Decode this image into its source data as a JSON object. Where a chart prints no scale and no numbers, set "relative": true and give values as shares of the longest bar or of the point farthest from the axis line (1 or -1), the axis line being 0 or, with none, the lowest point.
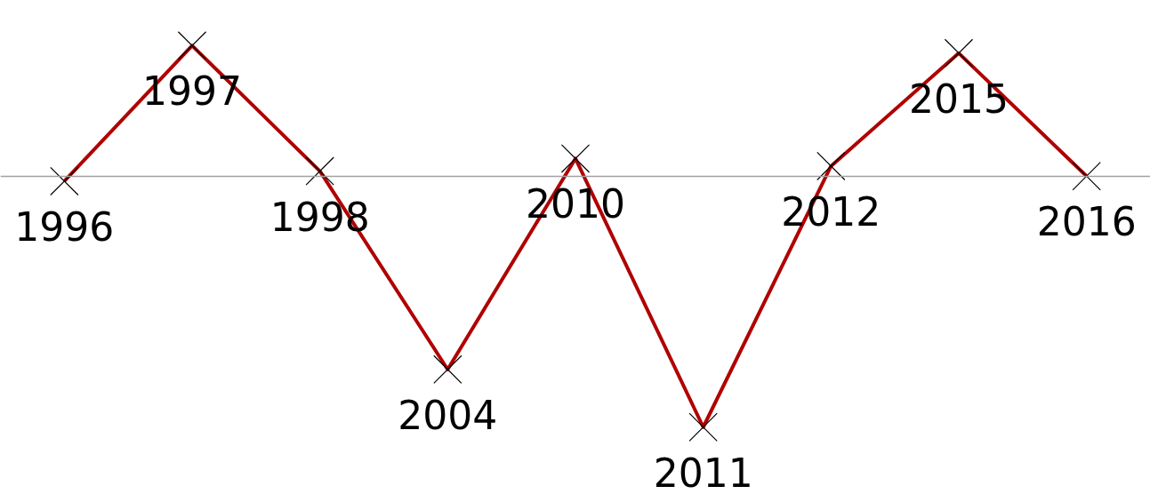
{
  "chart_data": {
    "type": "line",
    "relative": true,
    "categories": [
      "1996",
      "1997",
      "1998",
      "2004",
      "2010",
      "2011",
      "2012",
      "2015",
      "2016"
    ],
    "series": [
      {
        "color": "#b00000",
        "values": [
          -0.02,
          0.52,
          0.02,
          -0.77,
          0.07,
          -1,
          0.04,
          0.49,
          0.0
        ]
      }
    ],
    "marker": "cross",
    "line_style": "solid",
    "grid": false
  }
}
